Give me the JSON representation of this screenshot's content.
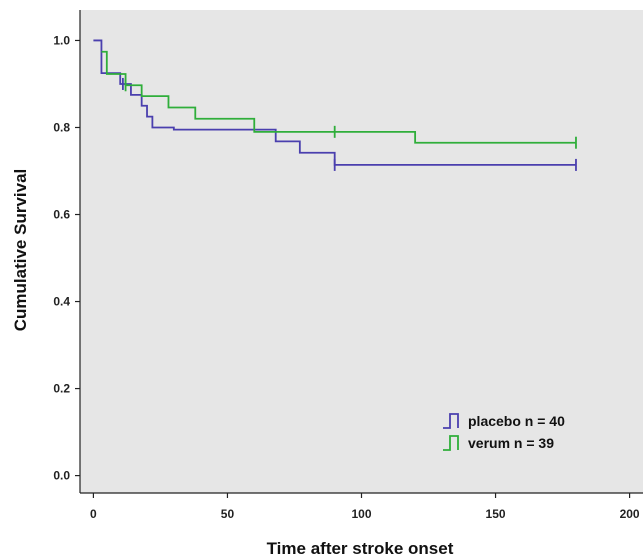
{
  "chart_data": {
    "type": "line",
    "step": true,
    "xlabel": "Time after stroke onset",
    "ylabel": "Cumulative Survival",
    "xlim": [
      -5,
      205
    ],
    "ylim": [
      -0.04,
      1.07
    ],
    "xticks": [
      "0",
      "50",
      "100",
      "150",
      "200"
    ],
    "yticks": [
      "0.0",
      "0.2",
      "0.4",
      "0.6",
      "0.8",
      "1.0"
    ],
    "grid": false,
    "legend_position": "bottom-right",
    "background_color": "#e6e6e6",
    "series": [
      {
        "name": "placebo n = 40",
        "color": "#4a3fae",
        "x": [
          0,
          3,
          10,
          14,
          18,
          20,
          22,
          30,
          60,
          68,
          77,
          90,
          180
        ],
        "y": [
          1.0,
          0.925,
          0.9,
          0.875,
          0.85,
          0.825,
          0.8,
          0.795,
          0.795,
          0.768,
          0.742,
          0.714,
          0.714
        ],
        "censored_x": [
          11,
          90,
          180
        ]
      },
      {
        "name": "verum n = 39",
        "color": "#2fae3a",
        "x": [
          3,
          5,
          12,
          18,
          28,
          38,
          60,
          120,
          180
        ],
        "y": [
          0.974,
          0.923,
          0.897,
          0.872,
          0.846,
          0.82,
          0.79,
          0.765,
          0.765
        ],
        "censored_x": [
          12,
          90,
          180
        ]
      }
    ]
  }
}
